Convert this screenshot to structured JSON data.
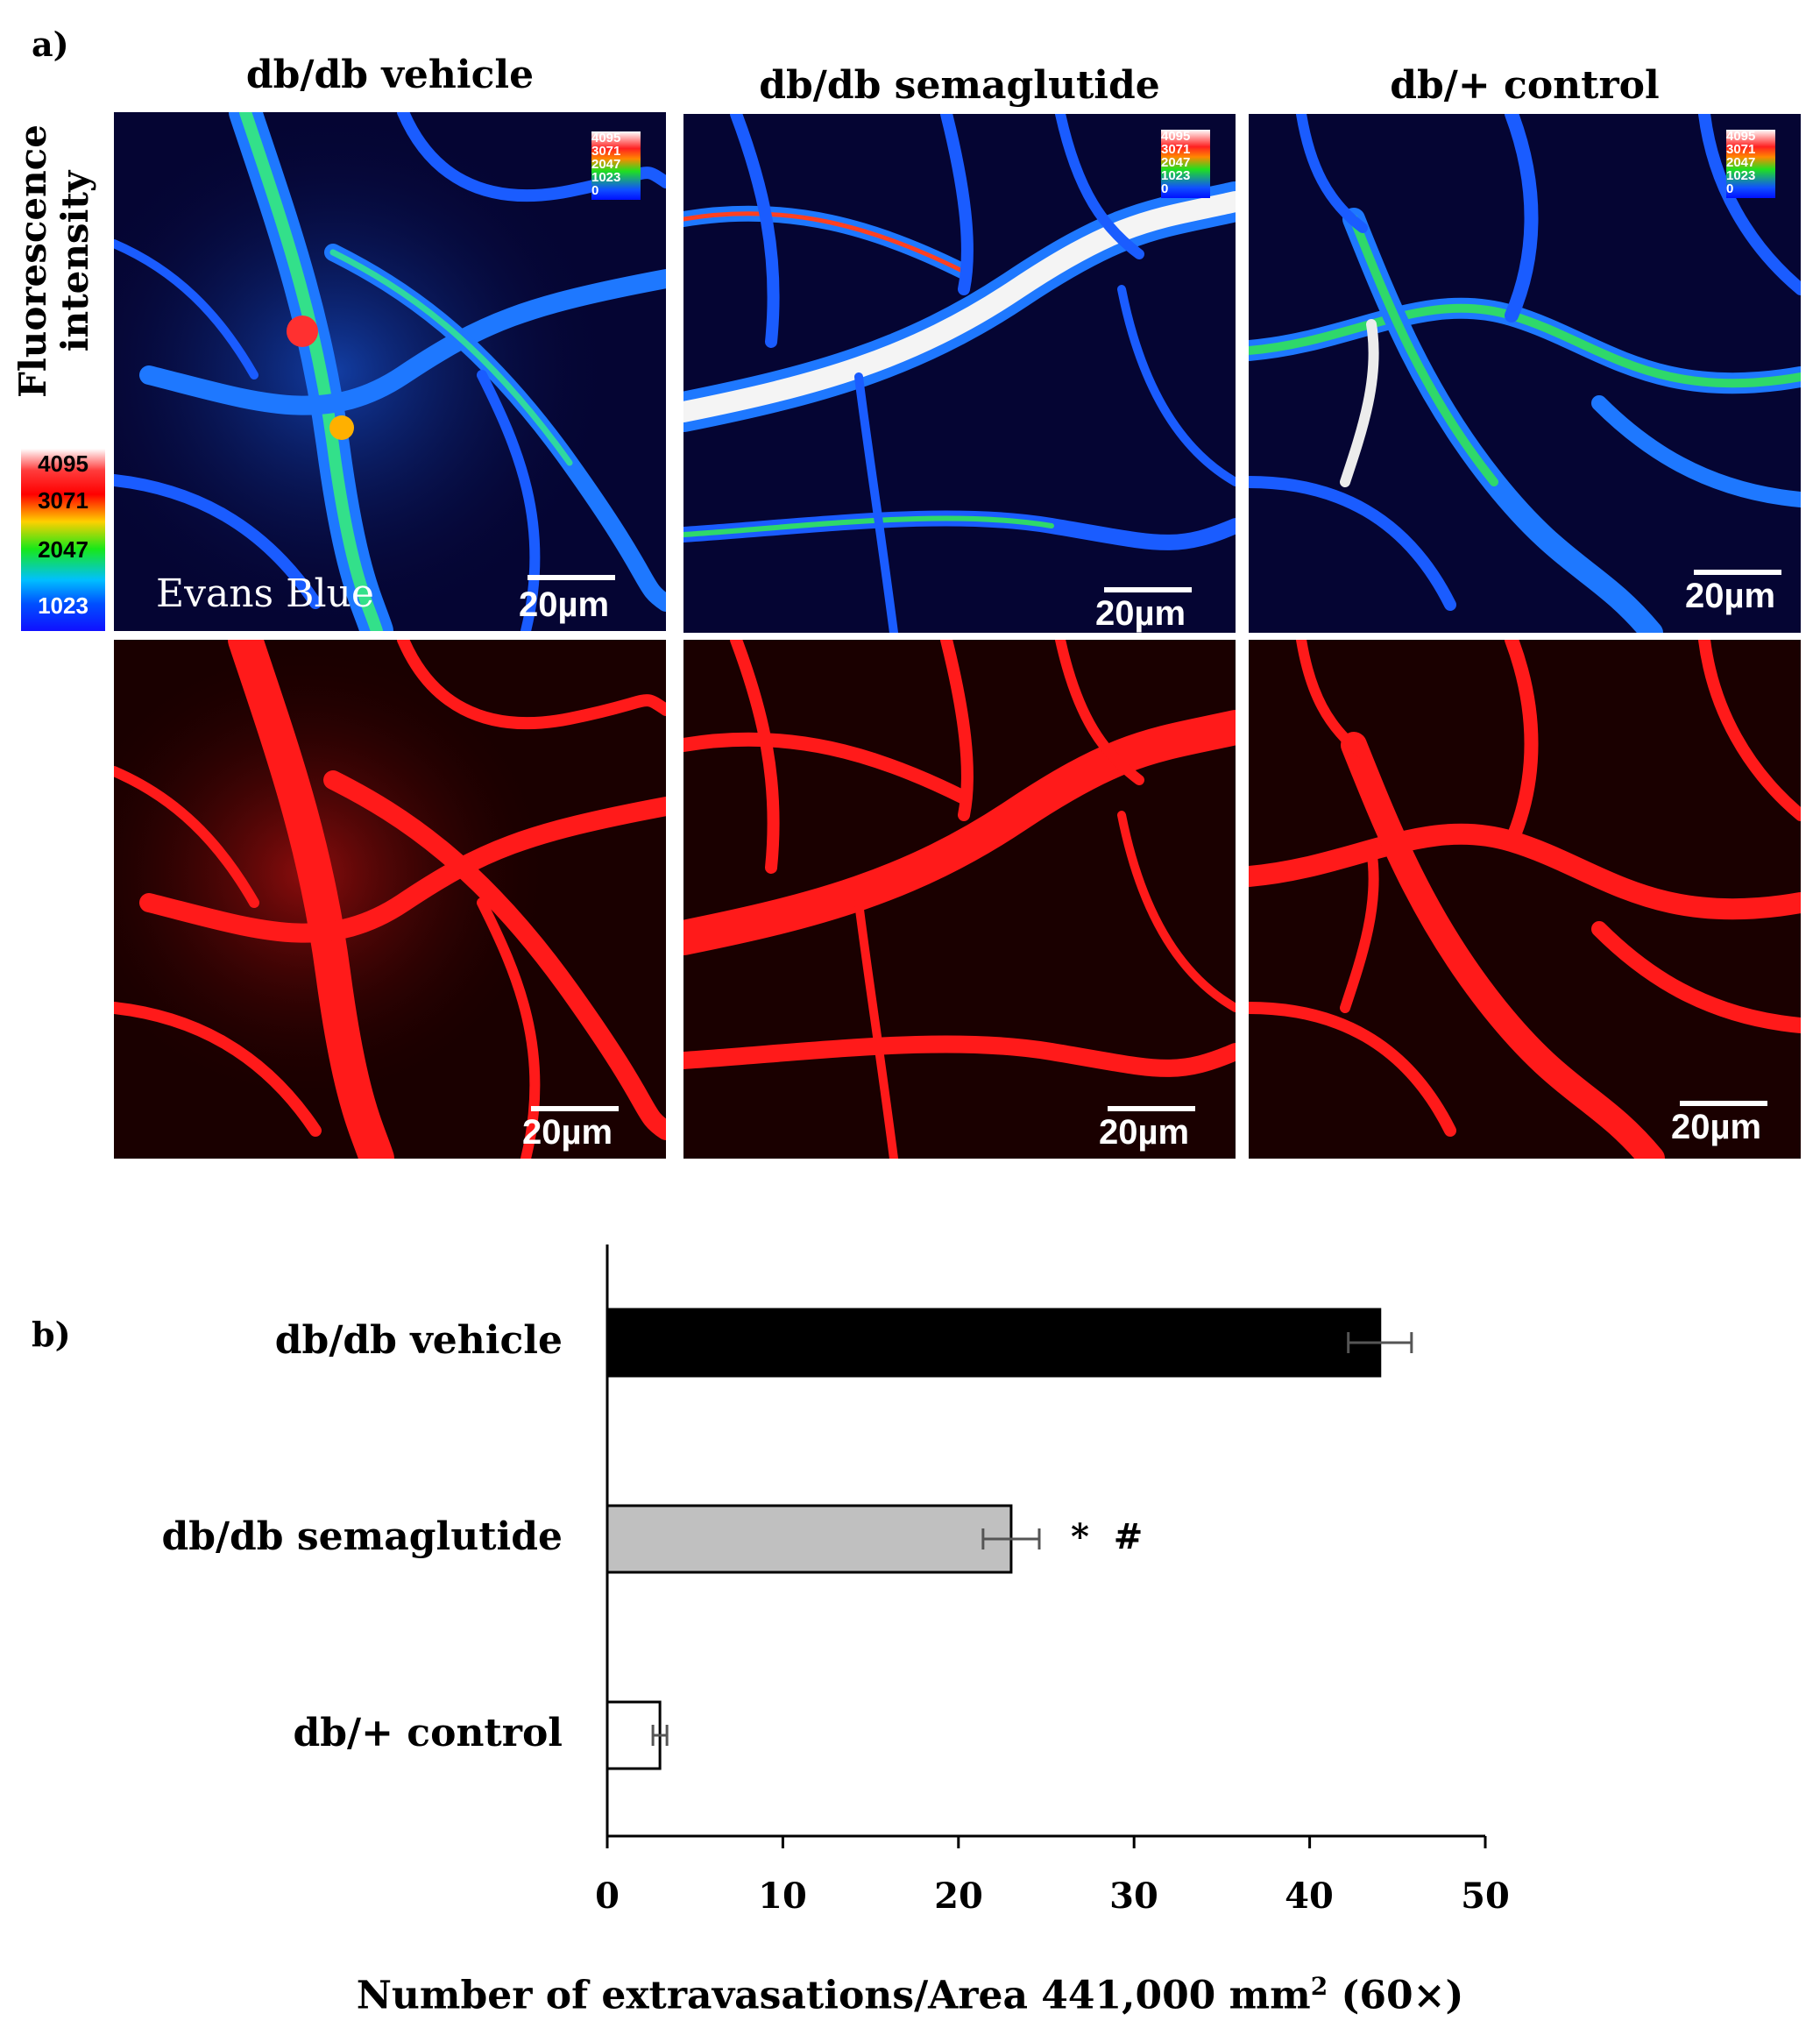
{
  "figure": {
    "panel_a_label": "a)",
    "panel_b_label": "b)",
    "column_titles": [
      "db/db vehicle",
      "db/db semaglutide",
      "db/+ control"
    ],
    "fluorescence_title_line1": "Fluorescence",
    "fluorescence_title_line2": "intensity",
    "colorbar_ticks": [
      "4095",
      "3071",
      "2047",
      "1023"
    ],
    "mini_colorbar_ticks": [
      "4095",
      "3071",
      "2047",
      "1023",
      "0"
    ],
    "stain_label": "Evans Blue",
    "scale_bar": "20µm",
    "colors": {
      "heatmap_bg": "#050533",
      "vessel_blue": "#1a5cff",
      "red_bg": "#1a0000",
      "red_vessel": "#ff1a1a"
    }
  },
  "chart_data": {
    "type": "bar",
    "orientation": "horizontal",
    "categories": [
      "db/db vehicle",
      "db/db semaglutide",
      "db/+ control"
    ],
    "values": [
      44,
      23,
      3
    ],
    "errors": [
      1.8,
      1.6,
      0.4
    ],
    "bar_colors": [
      "#000000",
      "#c0c0c0",
      "#ffffff"
    ],
    "xlabel_main": "Number of extravasations/Area 441,000 mm",
    "xlabel_sup": "2",
    "xlabel_tail": " (60×)",
    "xlim": [
      0,
      50
    ],
    "xticks": [
      "0",
      "10",
      "20",
      "30",
      "40",
      "50"
    ],
    "annotation": "*  #"
  }
}
